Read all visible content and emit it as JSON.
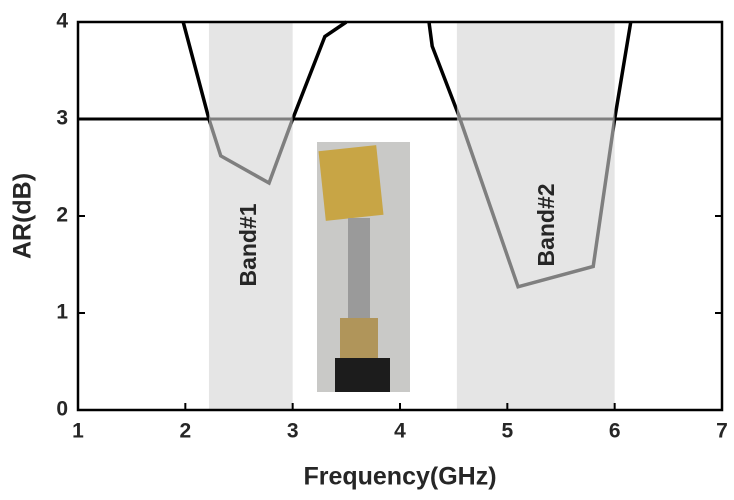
{
  "chart_data": {
    "type": "line",
    "xlabel": "Frequency(GHz)",
    "ylabel": "AR(dB)",
    "xlim": [
      1,
      7
    ],
    "ylim": [
      0,
      4
    ],
    "xticks": [
      1,
      2,
      3,
      4,
      5,
      6,
      7
    ],
    "yticks": [
      0,
      1,
      2,
      3,
      4
    ],
    "series": [
      {
        "color": "#000000",
        "x": [
          1.98,
          2.22,
          2.33,
          2.78,
          3.0,
          3.3,
          3.5,
          null,
          4.27,
          4.3,
          4.55,
          5.1,
          5.8,
          6.0,
          6.15
        ],
        "values": [
          4,
          3,
          2.62,
          2.34,
          3,
          3.85,
          4,
          null,
          4,
          3.75,
          3.03,
          1.27,
          1.48,
          3,
          4
        ]
      }
    ],
    "reference_line": {
      "value": 3,
      "color": "#000000"
    },
    "bands": [
      {
        "start": 2.22,
        "end": 3.0,
        "label": "Band#1",
        "color": "#d4d4d4"
      },
      {
        "start": 4.53,
        "end": 6.0,
        "label": "Band#2",
        "color": "#d4d4d4"
      }
    ]
  }
}
